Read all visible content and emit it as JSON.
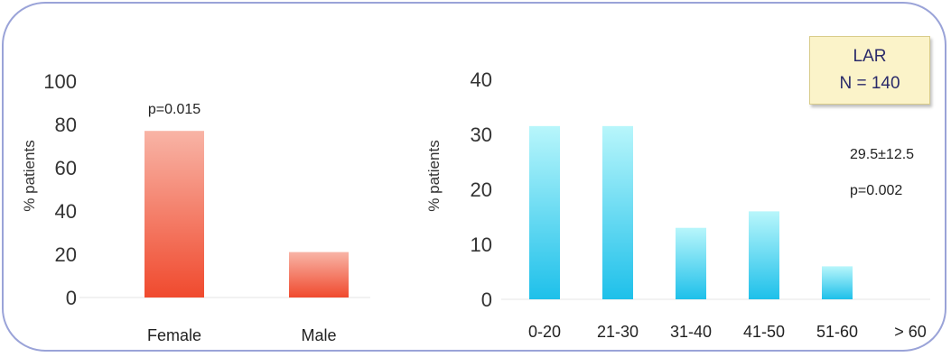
{
  "chart_data": [
    {
      "type": "bar",
      "categories": [
        "Female",
        "Male"
      ],
      "values": [
        77,
        21
      ],
      "ylabel": "% patients",
      "ylim": [
        0,
        100
      ],
      "yticks": [
        0,
        20,
        40,
        60,
        80,
        100
      ],
      "annotation": "p=0.015",
      "colors": {
        "bar_top": "#f8b4a6",
        "bar_bottom": "#f04a2e"
      }
    },
    {
      "type": "bar",
      "categories": [
        "0-20",
        "21-30",
        "31-40",
        "41-50",
        "51-60",
        "> 60"
      ],
      "values": [
        31.5,
        31.5,
        13,
        16,
        6,
        0
      ],
      "ylabel": "% patients",
      "ylim": [
        0,
        40
      ],
      "yticks": [
        0,
        10,
        20,
        30,
        40
      ],
      "annotations": [
        "29.5±12.5",
        "p=0.002"
      ],
      "colors": {
        "bar_top": "#b8f6fb",
        "bar_bottom": "#1ec0ea"
      }
    }
  ],
  "legend_box": {
    "line1": "LAR",
    "line2": "N = 140"
  }
}
